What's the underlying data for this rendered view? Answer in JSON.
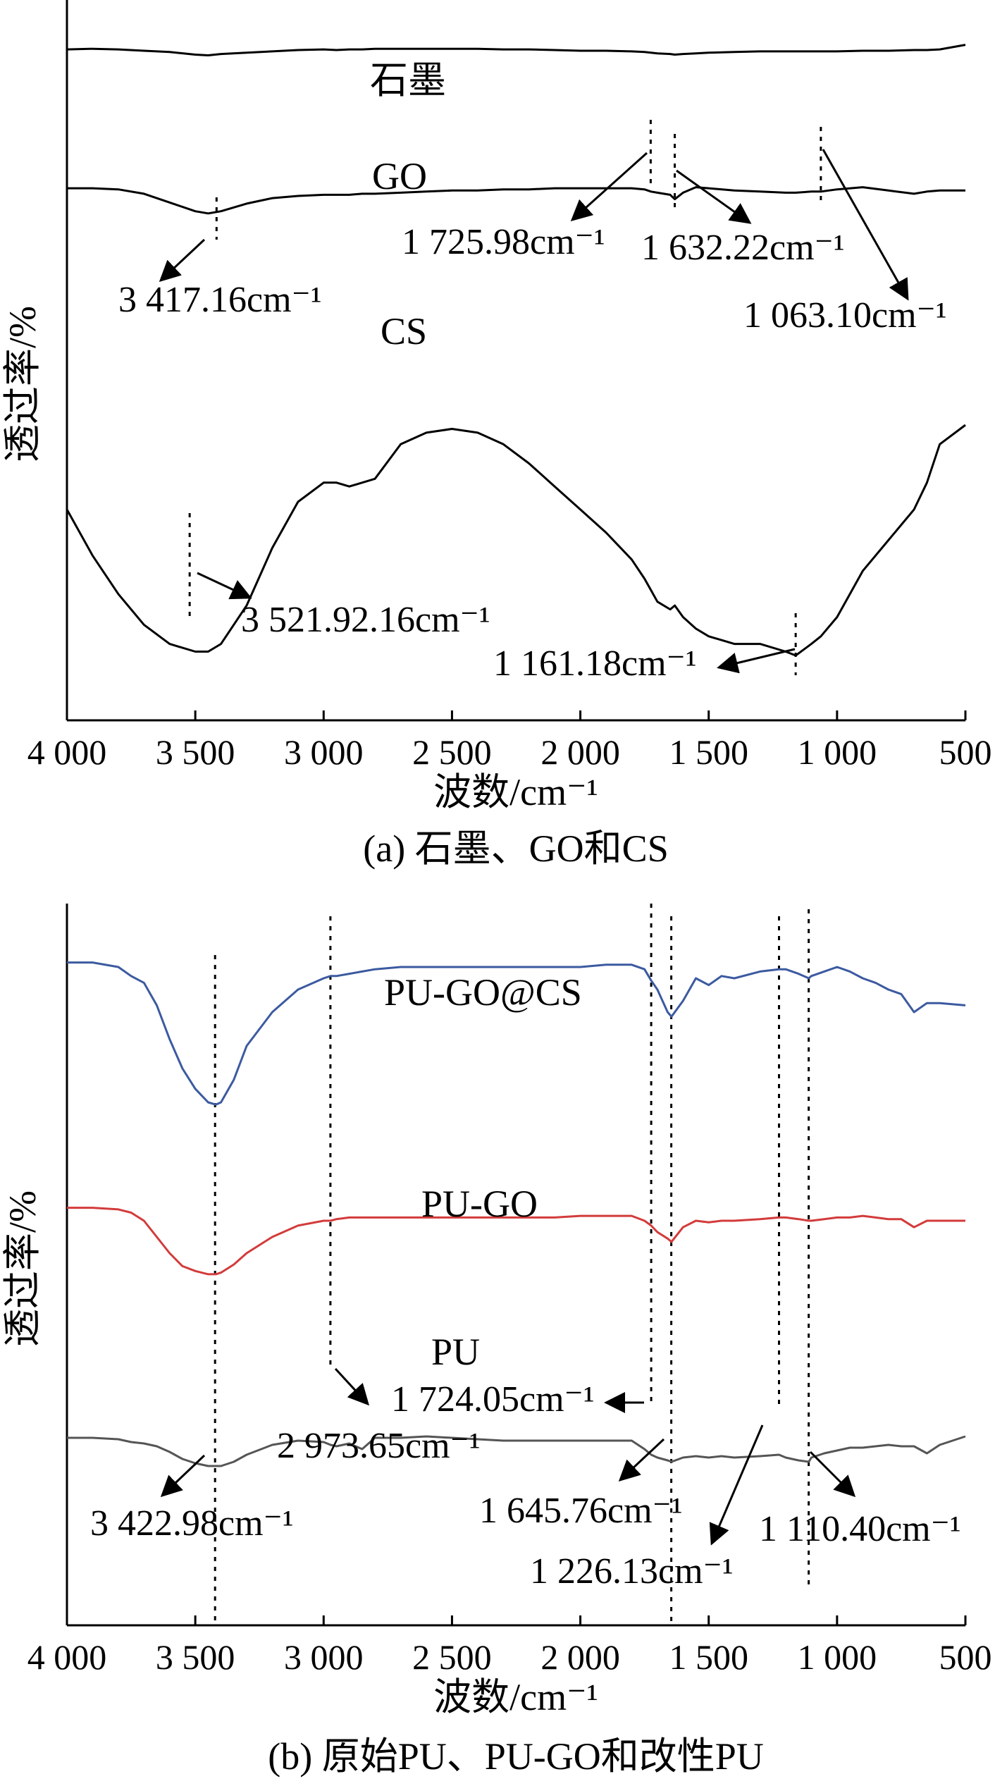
{
  "figure": {
    "panel_a": {
      "caption": "(a) 石墨、GO和CS",
      "xlabel": "波数/cm⁻¹",
      "ylabel": "透过率/%",
      "x_ticks": [
        "4 000",
        "3 500",
        "3 000",
        "2 500",
        "2 000",
        "1 500",
        "1 000",
        "500"
      ],
      "series_labels": {
        "graphite": "石墨",
        "go": "GO",
        "cs": "CS"
      },
      "annotations": {
        "go_3417": "3 417.16cm⁻¹",
        "go_1725": "1 725.98cm⁻¹",
        "go_1632": "1 632.22cm⁻¹",
        "go_1063": "1 063.10cm⁻¹",
        "cs_3521": "3 521.92.16cm⁻¹",
        "cs_1161": "1 161.18cm⁻¹"
      }
    },
    "panel_b": {
      "caption": "(b) 原始PU、PU-GO和改性PU",
      "xlabel": "波数/cm⁻¹",
      "ylabel": "透过率/%",
      "x_ticks": [
        "4 000",
        "3 500",
        "3 000",
        "2 500",
        "2 000",
        "1 500",
        "1 000",
        "500"
      ],
      "series_labels": {
        "pugocs": "PU-GO@CS",
        "pugo": "PU-GO",
        "pu": "PU"
      },
      "annotations": {
        "pu_3422": "3 422.98cm⁻¹",
        "pu_2973": "2 973.65cm⁻¹",
        "pu_1724": "1 724.05cm⁻¹",
        "pu_1645": "1 645.76cm⁻¹",
        "pu_1226": "1 226.13cm⁻¹",
        "pu_1110": "1 110.40cm⁻¹"
      }
    }
  },
  "chart_data": [
    {
      "type": "line",
      "title": "(a) 石墨、GO和CS",
      "xlabel": "波数/cm⁻¹",
      "ylabel": "透过率/%",
      "xlim": [
        4000,
        500
      ],
      "x_reversed": true,
      "y_ticks_shown": false,
      "colors": {
        "graphite": "#000000",
        "go": "#000000",
        "cs": "#000000"
      },
      "x": [
        4000,
        3900,
        3800,
        3700,
        3600,
        3500,
        3450,
        3400,
        3300,
        3200,
        3100,
        3000,
        2950,
        2900,
        2850,
        2800,
        2700,
        2600,
        2500,
        2400,
        2300,
        2200,
        2100,
        2000,
        1900,
        1800,
        1750,
        1725,
        1700,
        1650,
        1632,
        1600,
        1550,
        1500,
        1400,
        1300,
        1200,
        1161,
        1100,
        1063,
        1000,
        900,
        800,
        700,
        650,
        600,
        500
      ],
      "series": [
        {
          "name": "石墨",
          "values": [
            73,
            74,
            73,
            71,
            69,
            65,
            64,
            66,
            68,
            70,
            72,
            73,
            72,
            73,
            73,
            74,
            74,
            74,
            74,
            74,
            73,
            73,
            72,
            71,
            71,
            70,
            69,
            68,
            67,
            66,
            65,
            66,
            67,
            68,
            69,
            70,
            70,
            70,
            70,
            70,
            70,
            71,
            71,
            72,
            72,
            73,
            80
          ]
        },
        {
          "name": "GO",
          "values": [
            47,
            47,
            46,
            42,
            34,
            26,
            24,
            26,
            33,
            38,
            40,
            41,
            41,
            41,
            42,
            42,
            43,
            44,
            45,
            45,
            46,
            46,
            47,
            47,
            47,
            47,
            46,
            44,
            43,
            41,
            37,
            43,
            48,
            47,
            45,
            44,
            43,
            43,
            44,
            44,
            46,
            48,
            45,
            42,
            44,
            45,
            45
          ]
        },
        {
          "name": "CS",
          "values": [
            38,
            26,
            16,
            8,
            3,
            1,
            1,
            3,
            13,
            28,
            40,
            45,
            45,
            44,
            45,
            46,
            55,
            58,
            59,
            58,
            55,
            50,
            44,
            38,
            32,
            25,
            20,
            17,
            14,
            12,
            13,
            10,
            7,
            5,
            3,
            3,
            1,
            0,
            3,
            5,
            10,
            22,
            30,
            38,
            45,
            55,
            60
          ]
        }
      ],
      "annotations": [
        {
          "text": "3 417.16cm⁻¹",
          "x": 3417.16
        },
        {
          "text": "1 725.98cm⁻¹",
          "x": 1725.98
        },
        {
          "text": "1 632.22cm⁻¹",
          "x": 1632.22
        },
        {
          "text": "1 063.10cm⁻¹",
          "x": 1063.1
        },
        {
          "text": "3 521.92.16cm⁻¹",
          "x": 3521.92
        },
        {
          "text": "1 161.18cm⁻¹",
          "x": 1161.18
        }
      ]
    },
    {
      "type": "line",
      "title": "(b) 原始PU、PU-GO和改性PU",
      "xlabel": "波数/cm⁻¹",
      "ylabel": "透过率/%",
      "xlim": [
        4000,
        500
      ],
      "x_reversed": true,
      "y_ticks_shown": false,
      "colors": {
        "pugocs": "#3c5aa0",
        "pugo": "#d33b3b",
        "pu": "#555555"
      },
      "x": [
        4000,
        3900,
        3800,
        3750,
        3700,
        3650,
        3600,
        3550,
        3500,
        3450,
        3420,
        3400,
        3350,
        3300,
        3200,
        3100,
        3000,
        2973,
        2950,
        2900,
        2850,
        2800,
        2700,
        2600,
        2500,
        2400,
        2300,
        2200,
        2100,
        2000,
        1900,
        1800,
        1750,
        1724,
        1700,
        1660,
        1645,
        1600,
        1550,
        1500,
        1450,
        1400,
        1300,
        1226,
        1200,
        1150,
        1110,
        1100,
        1050,
        1000,
        950,
        900,
        850,
        800,
        750,
        700,
        650,
        600,
        500
      ],
      "series": [
        {
          "name": "PU-GO@CS",
          "values": [
            92,
            92,
            90,
            86,
            83,
            73,
            58,
            45,
            36,
            30,
            29,
            30,
            40,
            55,
            70,
            80,
            85,
            86,
            86,
            87,
            88,
            89,
            90,
            90,
            90,
            90,
            90,
            90,
            90,
            90,
            91,
            91,
            89,
            84,
            80,
            70,
            68,
            75,
            85,
            82,
            86,
            85,
            88,
            89,
            89,
            87,
            85,
            86,
            88,
            90,
            88,
            85,
            83,
            80,
            78,
            70,
            74,
            74,
            73
          ]
        },
        {
          "name": "PU-GO",
          "values": [
            68,
            68,
            67,
            65,
            60,
            50,
            40,
            32,
            29,
            27,
            27,
            28,
            33,
            40,
            50,
            57,
            60,
            60,
            61,
            62,
            62,
            62,
            62,
            62,
            62,
            62,
            62,
            62,
            62,
            63,
            63,
            63,
            60,
            57,
            53,
            49,
            47,
            56,
            60,
            59,
            60,
            60,
            61,
            62,
            62,
            61,
            60,
            60,
            61,
            62,
            62,
            63,
            62,
            61,
            61,
            56,
            60,
            60,
            60
          ]
        },
        {
          "name": "PU",
          "values": [
            20,
            20,
            19,
            17,
            16,
            14,
            10,
            5,
            2,
            0,
            0,
            0,
            3,
            8,
            15,
            18,
            17,
            15,
            14,
            16,
            12,
            20,
            20,
            21,
            20,
            19,
            18,
            18,
            18,
            18,
            18,
            18,
            12,
            8,
            6,
            4,
            3,
            6,
            7,
            6,
            7,
            6,
            7,
            8,
            6,
            4,
            3,
            6,
            9,
            11,
            13,
            13,
            14,
            15,
            14,
            14,
            9,
            15,
            21
          ]
        }
      ],
      "annotations": [
        {
          "text": "3 422.98cm⁻¹",
          "x": 3422.98
        },
        {
          "text": "2 973.65cm⁻¹",
          "x": 2973.65
        },
        {
          "text": "1 724.05cm⁻¹",
          "x": 1724.05
        },
        {
          "text": "1 645.76cm⁻¹",
          "x": 1645.76
        },
        {
          "text": "1 226.13cm⁻¹",
          "x": 1226.13
        },
        {
          "text": "1 110.40cm⁻¹",
          "x": 1110.4
        }
      ]
    }
  ]
}
